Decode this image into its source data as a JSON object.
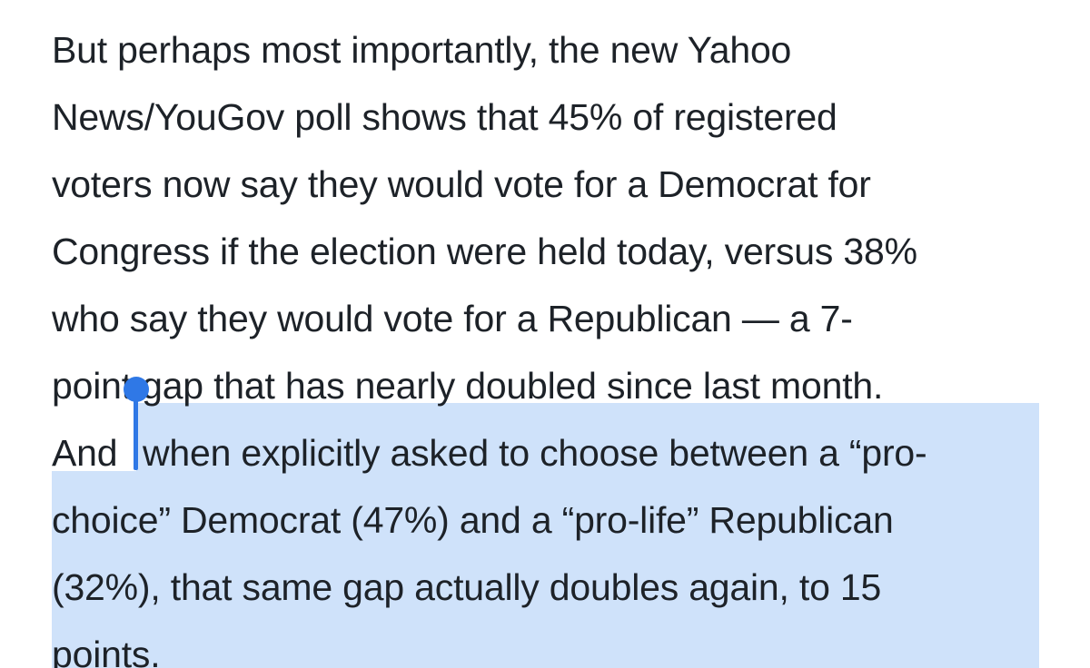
{
  "article": {
    "lines": [
      "But perhaps most importantly, the new Yahoo",
      "News/YouGov poll shows that 45% of registered",
      "voters now say they would vote for a Democrat for",
      "Congress if the election were held today, versus 38%",
      "who say they would vote for a Republican — a 7-",
      "point gap that has nearly doubled since last month.",
      "And",
      "when explicitly asked to choose between a “pro-",
      "choice” Democrat (47%) and a “pro-life” Republican",
      "(32%), that same gap actually doubles again, to 15",
      "points."
    ]
  },
  "colors": {
    "text": "#1d2228",
    "selection": "#cfe2fa",
    "caret": "#2f78e6"
  }
}
